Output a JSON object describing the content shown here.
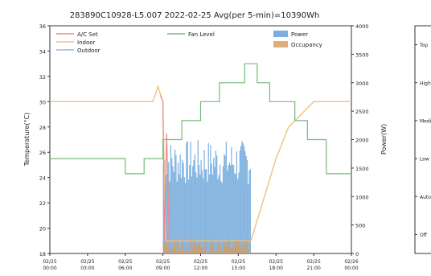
{
  "chart_data": {
    "type": "line",
    "title": "283890C10928-L5.007 2022-02-25 Avg(per 5-min)=10390Wh",
    "xlabel": "",
    "ylabel": "Temperature(°C)",
    "y2label": "Power(W)",
    "x_ticks": [
      "02/25 00:00",
      "02/25 03:00",
      "02/25 06:00",
      "02/25 09:00",
      "02/25 12:00",
      "02/25 15:00",
      "02/25 18:00",
      "02/25 21:00",
      "02/26 00:00"
    ],
    "xlim_hours": [
      0,
      24
    ],
    "ylim": [
      18,
      36
    ],
    "y_ticks": [
      18,
      20,
      22,
      24,
      26,
      28,
      30,
      32,
      34,
      36
    ],
    "y2lim": [
      0,
      4000
    ],
    "y2_ticks": [
      0,
      500,
      1000,
      1500,
      2000,
      2500,
      3000,
      3500,
      4000
    ],
    "fan_levels": [
      "Off",
      "Auto",
      "Low",
      "Medium",
      "High",
      "Top"
    ],
    "legend": {
      "placement": "top",
      "entries": [
        "A/C Set",
        "Indoor",
        "Outdoor",
        "Fan Level",
        "Power",
        "Occupancy"
      ]
    },
    "colors": {
      "ac_set": "#ee8888",
      "indoor": "#f0c080",
      "outdoor": "#90b8e0",
      "fan": "#77bb77",
      "power": "#5b9bd5",
      "occupancy": "#d89a5a"
    },
    "series": [
      {
        "name": "Indoor",
        "axis": "left",
        "points": [
          [
            0,
            30
          ],
          [
            8.2,
            30
          ],
          [
            8.6,
            31.2
          ],
          [
            9,
            30
          ],
          [
            9.2,
            19
          ],
          [
            15.8,
            19
          ],
          [
            16,
            19
          ],
          [
            18,
            25.5
          ],
          [
            19,
            28
          ],
          [
            20,
            29
          ],
          [
            21,
            30
          ],
          [
            24,
            30
          ]
        ]
      },
      {
        "name": "A/C Set",
        "axis": "left",
        "points": [
          [
            8.8,
            30.5
          ],
          [
            9,
            30
          ],
          [
            9.1,
            19
          ],
          [
            9.3,
            27.5
          ],
          [
            9.5,
            19
          ]
        ]
      },
      {
        "name": "Fan Level",
        "axis": "fan",
        "points": [
          [
            0,
            2
          ],
          [
            6,
            2
          ],
          [
            6,
            1.6
          ],
          [
            7.5,
            1.6
          ],
          [
            7.5,
            2
          ],
          [
            9,
            2
          ],
          [
            9,
            2.5
          ],
          [
            10.5,
            2.5
          ],
          [
            10.5,
            3
          ],
          [
            12,
            3
          ],
          [
            12,
            3.5
          ],
          [
            13.5,
            3.5
          ],
          [
            13.5,
            4
          ],
          [
            15.5,
            4
          ],
          [
            15.5,
            4.5
          ],
          [
            16.5,
            4.5
          ],
          [
            16.5,
            4
          ],
          [
            17.5,
            4
          ],
          [
            17.5,
            3.5
          ],
          [
            19.5,
            3.5
          ],
          [
            19.5,
            3
          ],
          [
            20.5,
            3
          ],
          [
            20.5,
            2.5
          ],
          [
            22,
            2.5
          ],
          [
            22,
            1.6
          ],
          [
            24,
            1.6
          ]
        ]
      },
      {
        "name": "Power",
        "axis": "right",
        "x_start": 9,
        "x_end": 16,
        "typical": 1600,
        "range": [
          1200,
          2000
        ]
      },
      {
        "name": "Occupancy",
        "axis": "right",
        "x_start": 9,
        "x_end": 16,
        "typical": 80,
        "range": [
          0,
          300
        ]
      }
    ]
  }
}
